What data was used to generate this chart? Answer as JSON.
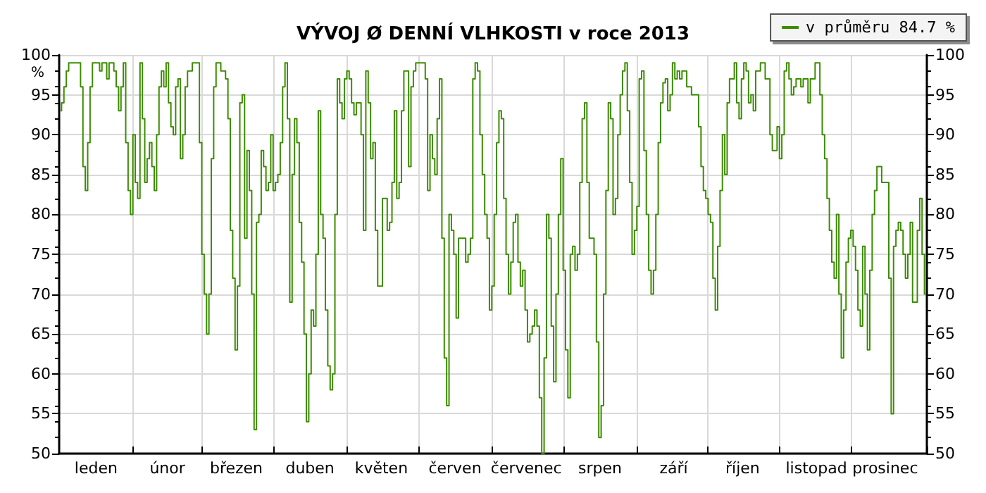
{
  "chart_data": {
    "type": "step",
    "title": "VÝVOJ Ø DENNÍ VLHKOSTI v roce 2013",
    "ylabel": "%",
    "categories": [
      null,
      null,
      null,
      null,
      null,
      null,
      null,
      null,
      null,
      null,
      null,
      null,
      null,
      null,
      null,
      "leden",
      null,
      null,
      null,
      null,
      null,
      null,
      null,
      null,
      null,
      null,
      null,
      null,
      null,
      null,
      null,
      null,
      null,
      null,
      null,
      null,
      null,
      null,
      null,
      null,
      null,
      null,
      null,
      null,
      null,
      "únor",
      null,
      null,
      null,
      null,
      null,
      null,
      null,
      null,
      null,
      null,
      null,
      null,
      null,
      null,
      null,
      null,
      null,
      null,
      null,
      null,
      null,
      null,
      null,
      null,
      null,
      null,
      null,
      null,
      "březen",
      null,
      null,
      null,
      null,
      null,
      null,
      null,
      null,
      null,
      null,
      null,
      null,
      null,
      null,
      null,
      null,
      null,
      null,
      null,
      null,
      null,
      null,
      null,
      null,
      null,
      null,
      null,
      null,
      null,
      null,
      "duben",
      null,
      null,
      null,
      null,
      null,
      null,
      null,
      null,
      null,
      null,
      null,
      null,
      null,
      null,
      null,
      null,
      null,
      null,
      null,
      null,
      null,
      null,
      null,
      null,
      null,
      null,
      null,
      null,
      null,
      "květen",
      null,
      null,
      null,
      null,
      null,
      null,
      null,
      null,
      null,
      null,
      null,
      null,
      null,
      null,
      null,
      null,
      null,
      null,
      null,
      null,
      null,
      null,
      null,
      null,
      null,
      null,
      null,
      null,
      null,
      null,
      "červen",
      null,
      null,
      null,
      null,
      null,
      null,
      null,
      null,
      null,
      null,
      null,
      null,
      null,
      null,
      null,
      null,
      null,
      null,
      null,
      null,
      null,
      null,
      null,
      null,
      null,
      null,
      null,
      null,
      null,
      "červenec",
      null,
      null,
      null,
      null,
      null,
      null,
      null,
      null,
      null,
      null,
      null,
      null,
      null,
      null,
      null,
      null,
      null,
      null,
      null,
      null,
      null,
      null,
      null,
      null,
      null,
      null,
      null,
      null,
      null,
      null,
      "srpen",
      null,
      null,
      null,
      null,
      null,
      null,
      null,
      null,
      null,
      null,
      null,
      null,
      null,
      null,
      null,
      null,
      null,
      null,
      null,
      null,
      null,
      null,
      null,
      null,
      null,
      null,
      null,
      null,
      null,
      null,
      "září",
      null,
      null,
      null,
      null,
      null,
      null,
      null,
      null,
      null,
      null,
      null,
      null,
      null,
      null,
      null,
      null,
      null,
      null,
      null,
      null,
      null,
      null,
      null,
      null,
      null,
      null,
      null,
      null,
      "říjen",
      null,
      null,
      null,
      null,
      null,
      null,
      null,
      null,
      null,
      null,
      null,
      null,
      null,
      null,
      null,
      null,
      null,
      null,
      null,
      null,
      null,
      null,
      null,
      null,
      null,
      null,
      null,
      null,
      null,
      null,
      "listopad",
      null,
      null,
      null,
      null,
      null,
      null,
      null,
      null,
      null,
      null,
      null,
      null,
      null,
      null,
      null,
      null,
      null,
      null,
      null,
      null,
      null,
      null,
      null,
      null,
      null,
      null,
      null,
      null,
      "prosinec",
      null,
      null,
      null,
      null,
      null,
      null,
      null,
      null,
      null,
      null,
      null,
      null,
      null,
      null,
      null,
      null,
      null
    ],
    "ylim": [
      50,
      100
    ],
    "yticks": [
      50,
      55,
      60,
      65,
      70,
      75,
      80,
      85,
      90,
      95,
      100
    ],
    "y2lim": [
      50,
      100
    ],
    "y2ticks": [
      50,
      55,
      60,
      65,
      70,
      75,
      80,
      85,
      90,
      95,
      100
    ],
    "grid": true,
    "legend": "top right",
    "marker": "none",
    "series": [
      {
        "name": "v průměru 84.7 %",
        "color": "#3c8c00",
        "values": [
          93,
          94,
          96,
          98,
          99,
          99,
          99,
          99,
          99,
          96,
          86,
          83,
          89,
          96,
          99,
          99,
          99,
          98,
          99,
          99,
          97,
          99,
          99,
          98,
          96,
          93,
          96,
          99,
          89,
          83,
          80,
          90,
          84,
          82,
          99,
          92,
          84,
          87,
          89,
          86,
          83,
          90,
          96,
          98,
          96,
          99,
          94,
          91,
          90,
          96,
          97,
          87,
          90,
          96,
          98,
          98,
          99,
          99,
          99,
          89,
          75,
          70,
          65,
          70,
          87,
          96,
          99,
          99,
          98,
          98,
          97,
          92,
          78,
          72,
          63,
          71,
          94,
          95,
          77,
          88,
          83,
          70,
          53,
          79,
          80,
          88,
          86,
          83,
          84,
          90,
          83,
          84,
          85,
          89,
          96,
          99,
          92,
          69,
          85,
          92,
          89,
          79,
          74,
          65,
          54,
          60,
          68,
          66,
          75,
          93,
          80,
          77,
          68,
          61,
          58,
          60,
          80,
          97,
          94,
          92,
          97,
          98,
          97,
          94,
          92.5,
          94,
          94,
          90,
          78,
          98,
          94,
          87,
          89,
          78,
          71,
          71,
          82,
          82,
          78,
          79,
          84,
          93,
          82,
          84,
          93,
          98,
          98,
          86,
          96,
          98,
          99,
          99,
          99,
          99,
          97,
          83,
          90,
          87,
          85,
          92,
          97,
          77,
          62,
          56,
          80,
          78,
          75,
          67,
          77,
          77,
          77,
          74,
          75,
          77,
          97,
          99,
          98,
          90,
          85,
          80,
          77,
          68,
          71,
          80,
          89,
          93,
          92,
          82,
          75,
          70,
          74,
          79,
          80,
          74,
          71,
          73,
          68,
          64,
          65,
          66,
          68,
          66,
          57,
          50,
          62,
          80,
          77,
          66,
          59,
          70,
          80,
          87,
          73,
          63,
          57,
          75,
          76,
          73,
          75,
          84,
          92,
          94,
          84,
          77,
          77,
          75,
          64,
          52,
          56,
          70,
          83,
          94,
          92,
          80,
          82,
          90,
          95,
          98,
          99,
          93,
          84,
          75,
          78,
          81,
          97,
          98,
          88,
          80,
          73,
          70,
          73,
          80,
          89,
          94,
          96.5,
          97,
          93,
          95,
          99,
          97,
          98,
          97,
          98,
          98,
          96,
          96,
          95,
          95,
          95,
          91,
          86,
          83,
          82,
          80,
          79,
          72,
          68,
          76,
          83,
          90,
          85,
          94,
          97,
          97,
          99,
          94,
          92,
          97,
          99,
          98,
          94,
          95,
          93,
          98,
          98,
          99,
          99,
          97,
          97,
          90,
          88,
          88,
          91,
          87,
          90,
          98,
          99,
          97,
          95,
          96,
          97,
          97,
          96,
          97,
          97,
          94,
          97,
          97,
          99,
          99,
          95,
          90,
          87,
          82,
          78,
          74,
          72,
          80,
          70,
          62,
          68,
          74,
          77,
          78,
          76,
          73,
          68,
          66,
          76,
          70,
          63,
          73,
          80,
          83,
          86,
          86,
          84,
          84,
          84,
          72,
          55,
          76,
          78,
          79,
          78,
          75,
          72,
          75,
          79,
          69,
          69,
          78,
          82,
          75,
          70
        ]
      }
    ]
  }
}
